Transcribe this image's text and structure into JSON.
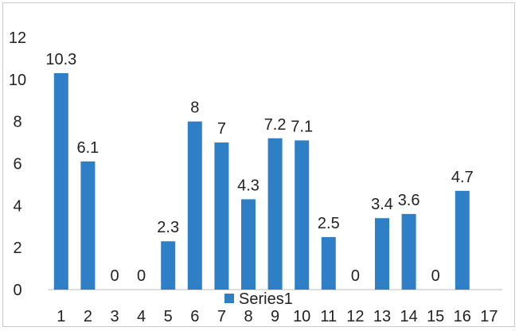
{
  "chart_data": {
    "type": "bar",
    "categories": [
      "1",
      "2",
      "3",
      "4",
      "5",
      "6",
      "7",
      "8",
      "9",
      "10",
      "11",
      "12",
      "13",
      "14",
      "15",
      "16",
      "17"
    ],
    "series": [
      {
        "name": "Series1",
        "values": [
          10.3,
          6.1,
          0,
          0,
          2.3,
          8,
          7,
          4.3,
          7.2,
          7.1,
          2.5,
          0,
          3.4,
          3.6,
          0,
          4.7,
          null
        ],
        "data_labels": [
          "10.3",
          "6.1",
          "0",
          "0",
          "2.3",
          "8",
          "7",
          "4.3",
          "7.2",
          "7.1",
          "2.5",
          "0",
          "3.4",
          "3.6",
          "0",
          "4.7",
          ""
        ],
        "color": "#2e7fc6"
      }
    ],
    "yticks": [
      "0",
      "2",
      "4",
      "6",
      "8",
      "10",
      "12"
    ],
    "ylim": [
      0,
      12
    ],
    "xlabel": "",
    "ylabel": "",
    "title": "",
    "legend_position": "bottom-center",
    "grid": false
  }
}
